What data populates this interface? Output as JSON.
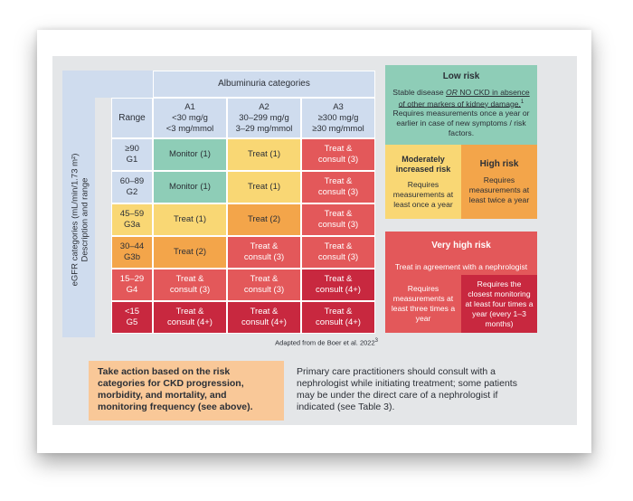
{
  "table": {
    "header_title": "Albuminuria categories",
    "range_label": "Range",
    "columns": [
      {
        "code": "A1",
        "line1": "<30 mg/g",
        "line2": "<3 mg/mmol"
      },
      {
        "code": "A2",
        "line1": "30–299 mg/g",
        "line2": "3–29 mg/mmol"
      },
      {
        "code": "A3",
        "line1": "≥300 mg/g",
        "line2": "≥30 mg/mmol"
      }
    ],
    "side_label_1": "eGFR categories (mL/min/1.73 m²)",
    "side_label_2": "Description and range",
    "rows": [
      {
        "range": "≥90",
        "code": "G1",
        "cells": [
          {
            "l1": "Monitor (1)",
            "l2": ""
          },
          {
            "l1": "Treat (1)",
            "l2": ""
          },
          {
            "l1": "Treat &",
            "l2": "consult (3)"
          }
        ]
      },
      {
        "range": "60–89",
        "code": "G2",
        "cells": [
          {
            "l1": "Monitor (1)",
            "l2": ""
          },
          {
            "l1": "Treat (1)",
            "l2": ""
          },
          {
            "l1": "Treat &",
            "l2": "consult (3)"
          }
        ]
      },
      {
        "range": "45–59",
        "code": "G3a",
        "cells": [
          {
            "l1": "Treat (1)",
            "l2": ""
          },
          {
            "l1": "Treat (2)",
            "l2": ""
          },
          {
            "l1": "Treat &",
            "l2": "consult (3)"
          }
        ]
      },
      {
        "range": "30–44",
        "code": "G3b",
        "cells": [
          {
            "l1": "Treat (2)",
            "l2": ""
          },
          {
            "l1": "Treat &",
            "l2": "consult (3)"
          },
          {
            "l1": "Treat &",
            "l2": "consult (3)"
          }
        ]
      },
      {
        "range": "15–29",
        "code": "G4",
        "cells": [
          {
            "l1": "Treat &",
            "l2": "consult (3)"
          },
          {
            "l1": "Treat &",
            "l2": "consult (3)"
          },
          {
            "l1": "Treat &",
            "l2": "consult (4+)"
          }
        ]
      },
      {
        "range": "<15",
        "code": "G5",
        "cells": [
          {
            "l1": "Treat &",
            "l2": "consult (4+)"
          },
          {
            "l1": "Treat &",
            "l2": "consult (4+)"
          },
          {
            "l1": "Treat &",
            "l2": "consult (4+)"
          }
        ]
      }
    ],
    "source": "Adapted from de Boer et al. 2022",
    "source_sup": "3"
  },
  "legend": {
    "low": {
      "title": "Low risk",
      "text_before": "Stable disease ",
      "text_or": "OR",
      "text_underlined": " NO CKD in absence of other markers of kidney damage.",
      "text_sup": "1",
      "text_after": " Requires measurements once a year or earlier in case of new symptoms / risk factors."
    },
    "moderate": {
      "title": "Moderately increased risk",
      "text": "Requires measurements at least once a year"
    },
    "high": {
      "title": "High risk",
      "text": "Requires measurements at least twice a year"
    },
    "very_high": {
      "title": "Very high risk",
      "text": "Treat in agreement with a nephrologist",
      "left_text": "Requires measurements at least three times a year",
      "right_text": "Requires the closest monitoring at least four times a year (every 1–3 months)"
    }
  },
  "footer": {
    "action_text": "Take action based on the risk categories for CKD progression, morbidity, and mortality, and monitoring frequency (see above).",
    "note_text": "Primary care practitioners should consult with a nephrologist while initiating treatment; some patients may be under the direct care of a nephrologist if indicated (see Table 3)."
  },
  "colors": {
    "low": "#8ecdb7",
    "moderate": "#f9d774",
    "high": "#f3a54a",
    "very_high": "#e3585a",
    "very_high_dark": "#c8283f",
    "header": "#cfdcee",
    "action_box": "#f9c898"
  }
}
